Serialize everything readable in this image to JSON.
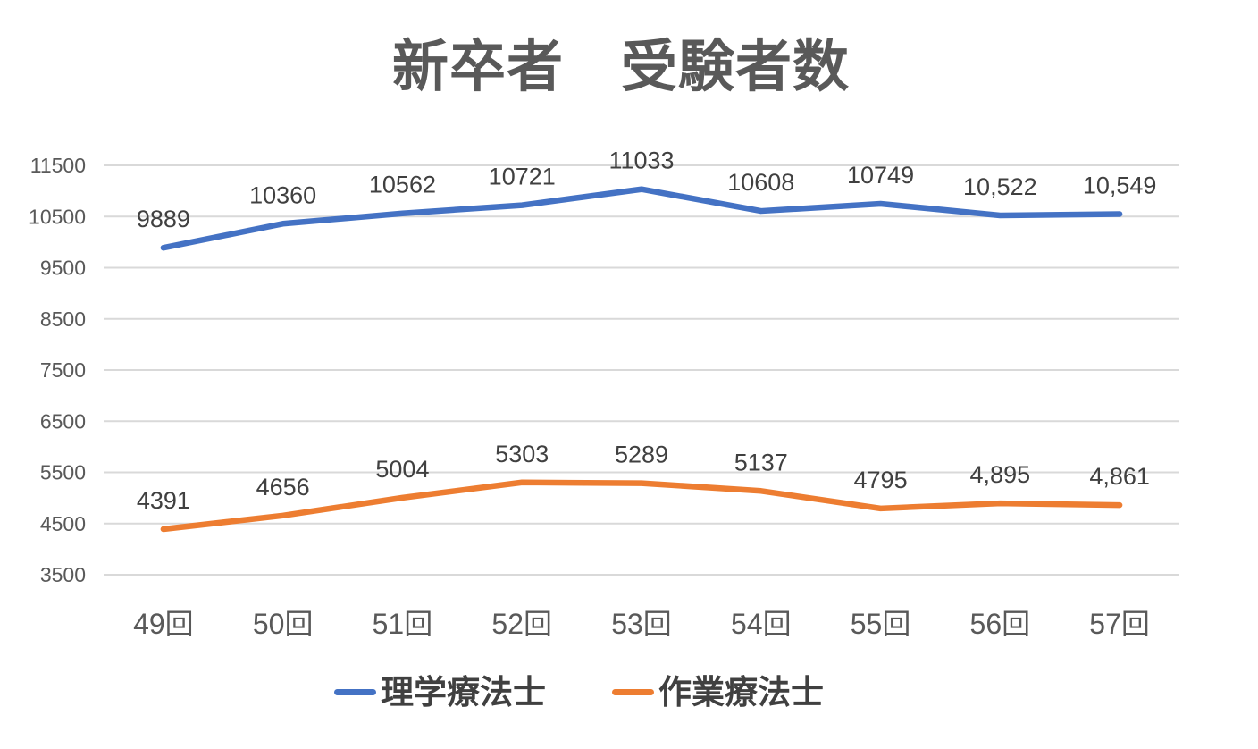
{
  "chart_data": {
    "type": "line",
    "title": "新卒者　受験者数",
    "categories": [
      "49回",
      "50回",
      "51回",
      "52回",
      "53回",
      "54回",
      "55回",
      "56回",
      "57回"
    ],
    "series": [
      {
        "name": "理学療法士",
        "color": "#4472C4",
        "values": [
          9889,
          10360,
          10562,
          10721,
          11033,
          10608,
          10749,
          10522,
          10549
        ],
        "labels": [
          "9889",
          "10360",
          "10562",
          "10721",
          "11033",
          "10608",
          "10749",
          "10,522",
          "10,549"
        ]
      },
      {
        "name": "作業療法士",
        "color": "#ED7D31",
        "values": [
          4391,
          4656,
          5004,
          5303,
          5289,
          5137,
          4795,
          4895,
          4861
        ],
        "labels": [
          "4391",
          "4656",
          "5004",
          "5303",
          "5289",
          "5137",
          "4795",
          "4,895",
          "4,861"
        ]
      }
    ],
    "y_axis": {
      "min": 3500,
      "max": 11500,
      "step": 1000,
      "ticks": [
        "3500",
        "4500",
        "5500",
        "6500",
        "7500",
        "8500",
        "9500",
        "10500",
        "11500"
      ]
    },
    "grid": true,
    "legend_position": "bottom",
    "colors": {
      "gridline": "#D9D9D9",
      "axis_text": "#595959",
      "data_label": "#404040",
      "title_text": "#595959",
      "legend_text": "#404040",
      "background": "#FFFFFF"
    }
  }
}
